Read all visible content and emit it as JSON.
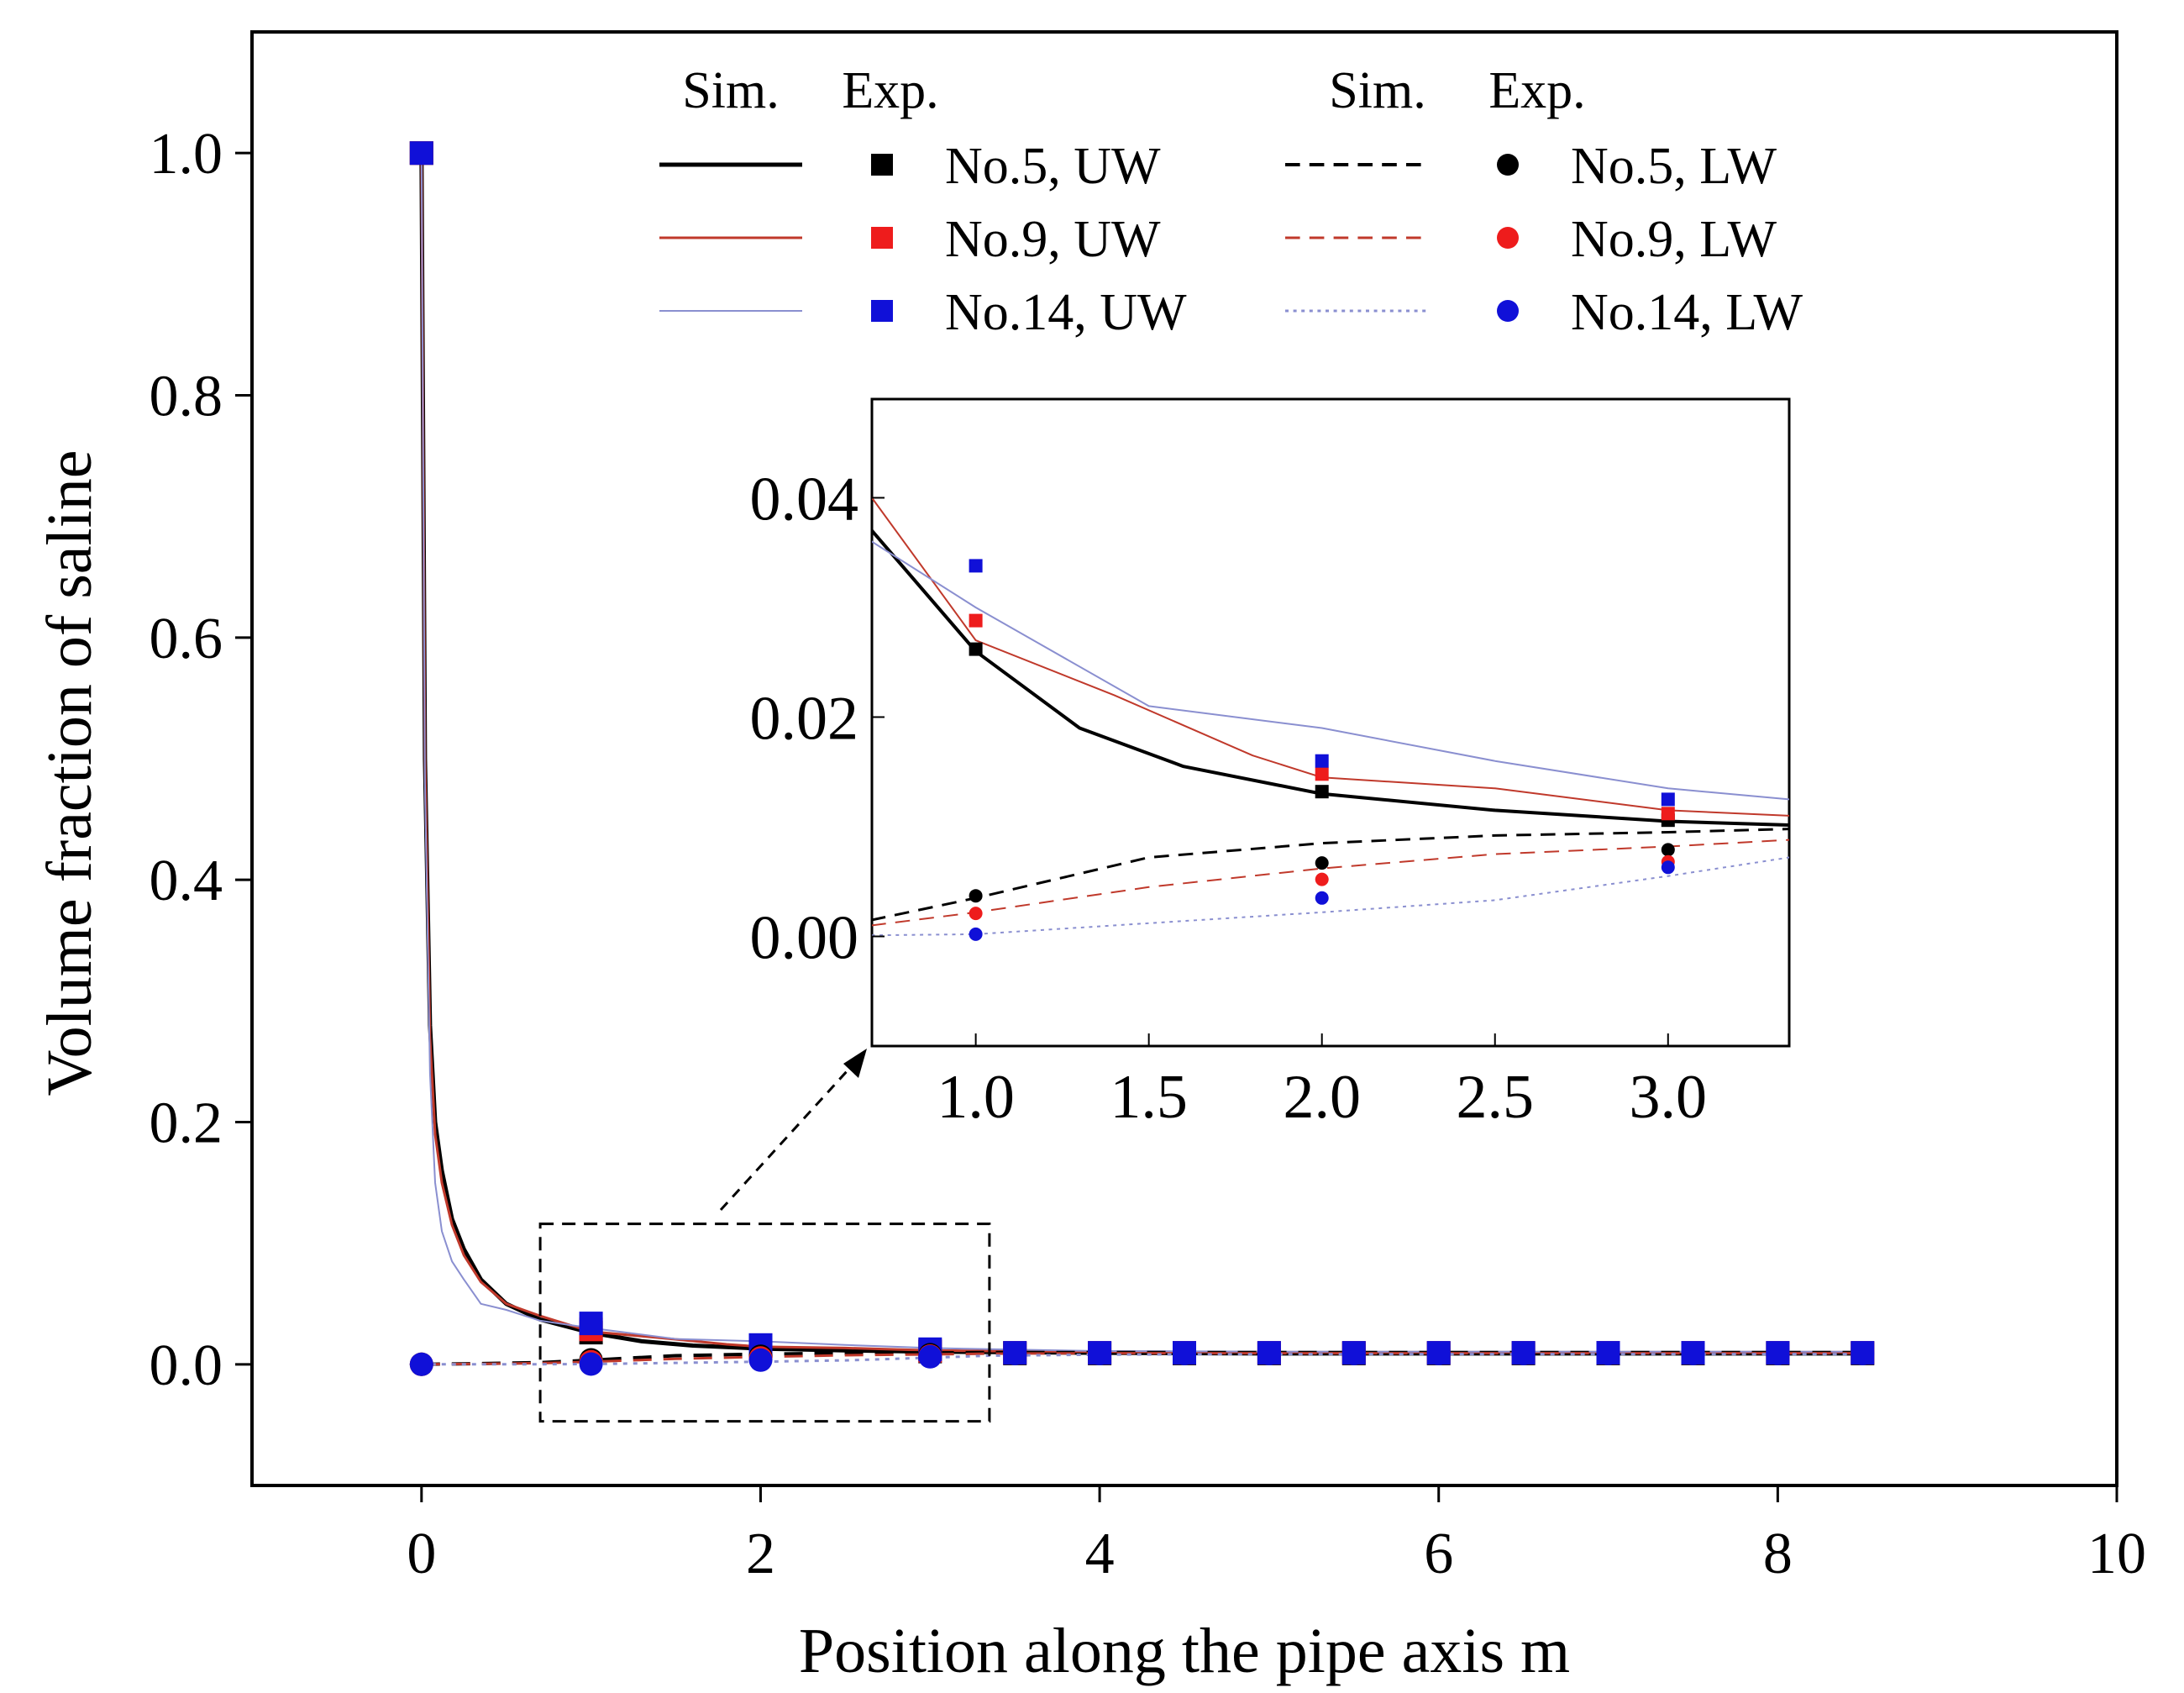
{
  "chart_data": [
    {
      "type": "line",
      "title": "",
      "xlabel": "Position along the pipe axis  m",
      "ylabel": "Volume fraction of saline",
      "xlim": [
        -1,
        10
      ],
      "ylim": [
        -0.1,
        1.1
      ],
      "xticks": [
        0,
        2,
        4,
        6,
        8,
        10
      ],
      "yticks": [
        0.0,
        0.2,
        0.4,
        0.6,
        0.8,
        1.0
      ],
      "xtick_labels": [
        "0",
        "2",
        "4",
        "6",
        "8",
        "10"
      ],
      "ytick_labels": [
        "0.0",
        "0.2",
        "0.4",
        "0.6",
        "0.8",
        "1.0"
      ],
      "legend": {
        "placement": "top",
        "headers": {
          "sim_left": "Sim.",
          "exp_left": "Exp.",
          "sim_right": "Sim.",
          "exp_right": "Exp."
        }
      },
      "zoom_box": {
        "x": [
          0.7,
          3.35
        ],
        "y": [
          -0.047,
          0.116
        ]
      },
      "series": [
        {
          "name": "No.5, UW",
          "kind": "upper",
          "color": "#000000",
          "dash": "solid",
          "marker": "square",
          "stroke_width": 5,
          "sim_x": [
            0,
            0.02,
            0.05,
            0.08,
            0.12,
            0.18,
            0.25,
            0.35,
            0.5,
            0.7,
            1.0,
            1.3,
            1.6,
            2.0,
            2.5,
            3.0,
            3.5,
            4,
            5,
            6,
            7,
            8,
            8.5
          ],
          "sim_y": [
            1.0,
            0.5,
            0.28,
            0.2,
            0.16,
            0.12,
            0.095,
            0.07,
            0.05,
            0.037,
            0.026,
            0.019,
            0.0155,
            0.013,
            0.0115,
            0.0105,
            0.01,
            0.0095,
            0.009,
            0.009,
            0.009,
            0.009,
            0.009
          ],
          "exp_x": [
            0,
            1,
            2,
            3,
            3.5,
            4,
            4.5,
            5,
            5.5,
            6,
            6.5,
            7,
            7.5,
            8,
            8.5
          ],
          "exp_y": [
            1.0,
            0.0262,
            0.0132,
            0.0106,
            0.009,
            0.009,
            0.009,
            0.009,
            0.009,
            0.009,
            0.009,
            0.009,
            0.009,
            0.009,
            0.009
          ]
        },
        {
          "name": "No.9, UW",
          "kind": "upper",
          "color": "#c0392b",
          "dash": "solid",
          "marker": "square",
          "stroke_width": 3,
          "sim_x": [
            0,
            0.02,
            0.05,
            0.08,
            0.12,
            0.18,
            0.25,
            0.35,
            0.5,
            0.7,
            1.0,
            1.4,
            1.8,
            2.0,
            2.5,
            3.0,
            3.35,
            4,
            5,
            6,
            7,
            8,
            8.5
          ],
          "sim_y": [
            1.0,
            0.5,
            0.27,
            0.19,
            0.15,
            0.115,
            0.09,
            0.068,
            0.05,
            0.04,
            0.027,
            0.022,
            0.0165,
            0.0145,
            0.0135,
            0.0115,
            0.011,
            0.0105,
            0.01,
            0.01,
            0.01,
            0.01,
            0.01
          ],
          "exp_x": [
            0,
            1,
            2,
            3,
            3.5,
            4,
            4.5,
            5,
            5.5,
            6,
            6.5,
            7,
            7.5,
            8,
            8.5
          ],
          "exp_y": [
            1.0,
            0.0288,
            0.0148,
            0.0112,
            0.0095,
            0.0095,
            0.0095,
            0.0095,
            0.0095,
            0.0095,
            0.0095,
            0.0095,
            0.0095,
            0.0095,
            0.0095
          ]
        },
        {
          "name": "No.14, UW",
          "kind": "upper",
          "color": "#8a8fd0",
          "dash": "solid",
          "marker": "square",
          "stroke_width": 2,
          "sim_x": [
            0,
            0.02,
            0.05,
            0.08,
            0.12,
            0.18,
            0.25,
            0.35,
            0.5,
            0.7,
            1.0,
            1.5,
            2.0,
            2.5,
            3.0,
            3.35,
            4,
            5,
            6,
            7,
            8,
            8.5
          ],
          "sim_y": [
            1.0,
            0.48,
            0.24,
            0.15,
            0.11,
            0.085,
            0.07,
            0.05,
            0.045,
            0.036,
            0.03,
            0.021,
            0.019,
            0.016,
            0.0135,
            0.0125,
            0.011,
            0.0105,
            0.0105,
            0.0105,
            0.0105,
            0.0105
          ],
          "exp_x": [
            0,
            1,
            2,
            3,
            3.5,
            4,
            4.5,
            5,
            5.5,
            6,
            6.5,
            7,
            7.5,
            8,
            8.5
          ],
          "exp_y": [
            1.0,
            0.0338,
            0.016,
            0.0125,
            0.0095,
            0.0095,
            0.0095,
            0.0095,
            0.0095,
            0.0095,
            0.0095,
            0.0095,
            0.0095,
            0.0095,
            0.0095
          ]
        },
        {
          "name": "No.5, LW",
          "kind": "lower",
          "color": "#000000",
          "dash": "dashed",
          "marker": "circle",
          "stroke_width": 4,
          "sim_x": [
            0,
            0.3,
            0.7,
            1.0,
            1.5,
            2.0,
            2.5,
            3.0,
            3.35,
            4,
            5,
            6,
            7,
            8,
            8.5
          ],
          "sim_y": [
            0.0,
            0.0005,
            0.0015,
            0.0035,
            0.0072,
            0.0085,
            0.0092,
            0.0095,
            0.0098,
            0.0098,
            0.0098,
            0.0098,
            0.0098,
            0.0098,
            0.0098
          ],
          "exp_x": [
            0,
            1,
            2,
            3
          ],
          "exp_y": [
            0.0,
            0.0037,
            0.0067,
            0.0079
          ]
        },
        {
          "name": "No.9, LW",
          "kind": "lower",
          "color": "#c0392b",
          "dash": "dashed",
          "marker": "circle",
          "stroke_width": 3,
          "sim_x": [
            0,
            0.3,
            0.7,
            1.0,
            1.5,
            2.0,
            2.5,
            3.0,
            3.35,
            4,
            5,
            6,
            7,
            8,
            8.5
          ],
          "sim_y": [
            0.0,
            0.0003,
            0.001,
            0.0022,
            0.0045,
            0.0062,
            0.0075,
            0.0082,
            0.0088,
            0.0092,
            0.0092,
            0.0092,
            0.0092,
            0.0092,
            0.0092
          ],
          "exp_x": [
            0,
            1,
            2,
            3
          ],
          "exp_y": [
            0.0,
            0.0021,
            0.0052,
            0.0068
          ]
        },
        {
          "name": "No.14, LW",
          "kind": "lower",
          "color": "#8a8fd0",
          "dash": "dotted",
          "marker": "circle",
          "stroke_width": 3,
          "sim_x": [
            0,
            0.3,
            0.7,
            1.0,
            1.5,
            2.0,
            2.5,
            3.0,
            3.35,
            4,
            5,
            6,
            7,
            8,
            8.5
          ],
          "sim_y": [
            0.0,
            0.0,
            0.0001,
            0.0002,
            0.0012,
            0.0022,
            0.0033,
            0.0055,
            0.0072,
            0.008,
            0.0085,
            0.0085,
            0.0085,
            0.0085,
            0.0085
          ],
          "exp_x": [
            0,
            1,
            2,
            3,
            3.5,
            4,
            4.5,
            5,
            5.5,
            6,
            6.5,
            7,
            7.5,
            8,
            8.5
          ],
          "exp_y": [
            0.0,
            0.0002,
            0.0035,
            0.0063,
            0.009,
            0.009,
            0.009,
            0.009,
            0.009,
            0.009,
            0.009,
            0.009,
            0.009,
            0.009,
            0.009
          ]
        }
      ],
      "marker_colors": {
        "No.5": "#000000",
        "No.9": "#ee1c1c",
        "No.14": "#1010d8"
      }
    },
    {
      "type": "line",
      "role": "inset",
      "xlim": [
        0.7,
        3.35
      ],
      "ylim": [
        -0.01,
        0.049
      ],
      "xticks": [
        1.0,
        1.5,
        2.0,
        2.5,
        3.0
      ],
      "yticks": [
        0.0,
        0.02,
        0.04
      ],
      "xtick_labels": [
        "1.0",
        "1.5",
        "2.0",
        "2.5",
        "3.0"
      ],
      "ytick_labels": [
        "0.00",
        "0.02",
        "0.04"
      ],
      "series_ref": "same as main chart series, zoomed"
    }
  ]
}
